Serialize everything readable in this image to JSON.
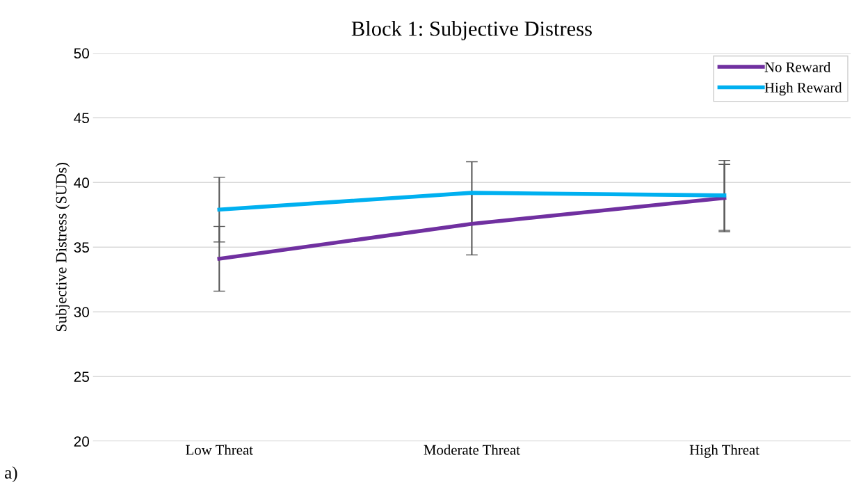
{
  "chart_data": {
    "type": "line",
    "title": "Block 1: Subjective Distress",
    "ylabel": "Subjective Distress (SUDs)",
    "categories": [
      "Low Threat",
      "Moderate Threat",
      "High Threat"
    ],
    "series": [
      {
        "name": "No Reward",
        "color": "#7030a0",
        "values": [
          34.1,
          36.8,
          38.8
        ],
        "errors": [
          2.5,
          2.4,
          2.6
        ]
      },
      {
        "name": "High Reward",
        "color": "#00b0f0",
        "values": [
          37.9,
          39.2,
          39.0
        ],
        "errors": [
          2.5,
          2.4,
          2.7
        ]
      }
    ],
    "ylim": [
      20,
      50
    ],
    "yticks": [
      20,
      25,
      30,
      35,
      40,
      45,
      50
    ],
    "grid": "y",
    "legend": "top right",
    "marker": "none",
    "line_style": "solid",
    "annotations": [
      "a)"
    ]
  }
}
